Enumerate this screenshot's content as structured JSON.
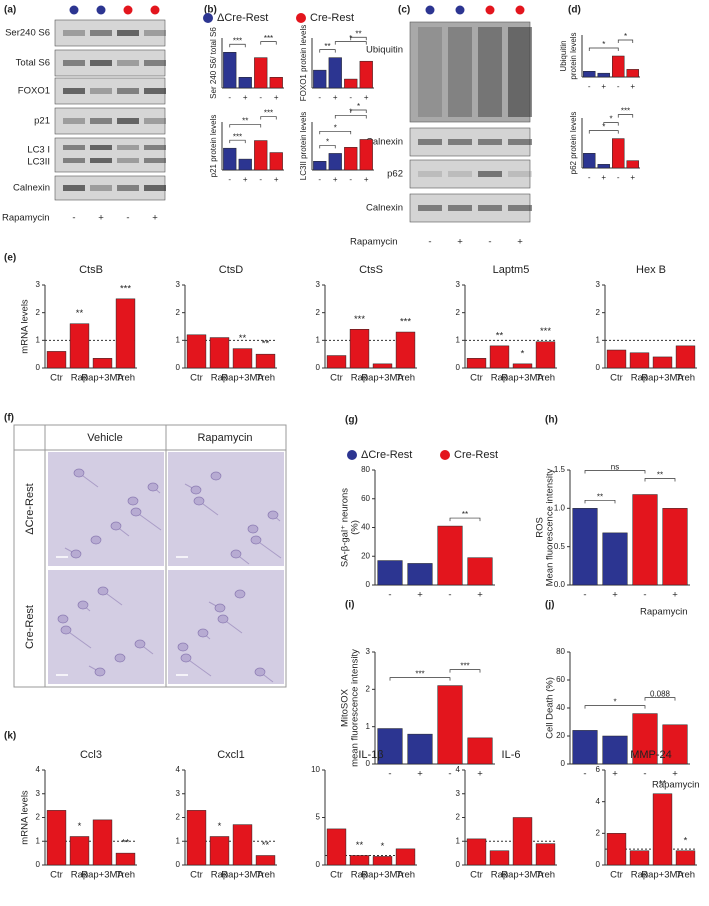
{
  "panel_labels": [
    "(a)",
    "(b)",
    "(c)",
    "(d)",
    "(e)",
    "(f)",
    "(g)",
    "(h)",
    "(i)",
    "(j)",
    "(k)"
  ],
  "legend": [
    {
      "name": "ΔCre-Rest",
      "color": "#2c3591"
    },
    {
      "name": "Cre-Rest",
      "color": "#e3151d"
    }
  ],
  "treatment_label": "Rapamycin",
  "conditions": [
    "-",
    "+",
    "-",
    "+"
  ],
  "blots_a": {
    "rows": [
      "Ser240 S6",
      "Total S6",
      "FOXO1",
      "p21",
      "LC3 I",
      "LC3II",
      "Calnexin"
    ]
  },
  "blots_c": {
    "rows": [
      "Ubiquitin",
      "Calnexin",
      "p62",
      "Calnexin"
    ]
  },
  "micrographs": {
    "columns": [
      "Vehicle",
      "Rapamycin"
    ],
    "rows": [
      "ΔCre-Rest",
      "Cre-Rest"
    ]
  },
  "chart_data": [
    {
      "type": "bar",
      "ylabel": [
        "Ser 240 S6/ total S6"
      ],
      "categories": [
        "-",
        "+",
        "-",
        "+"
      ],
      "values": [
        1.0,
        0.3,
        0.85,
        0.3
      ],
      "colors": [
        "#2c3591",
        "#2c3591",
        "#e3151d",
        "#e3151d"
      ],
      "ylim": [
        0,
        1.4
      ],
      "significance": [
        "***",
        "***"
      ]
    },
    {
      "type": "bar",
      "ylabel": [
        "FOXO1 protein levels"
      ],
      "categories": [
        "-",
        "+",
        "-",
        "+"
      ],
      "values": [
        1.0,
        1.7,
        0.5,
        1.5
      ],
      "colors": [
        "#2c3591",
        "#2c3591",
        "#e3151d",
        "#e3151d"
      ],
      "ylim": [
        0,
        2.8
      ],
      "significance": [
        "**",
        "*",
        "**"
      ]
    },
    {
      "type": "bar",
      "ylabel": [
        "p21 protein levels"
      ],
      "categories": [
        "-",
        "+",
        "-",
        "+"
      ],
      "values": [
        1.0,
        0.5,
        1.35,
        0.8
      ],
      "colors": [
        "#2c3591",
        "#2c3591",
        "#e3151d",
        "#e3151d"
      ],
      "ylim": [
        0,
        2.2
      ],
      "significance": [
        "***",
        "**",
        "***"
      ]
    },
    {
      "type": "bar",
      "ylabel": [
        "LC3II protein levels"
      ],
      "categories": [
        "-",
        "+",
        "-",
        "+"
      ],
      "values": [
        1.0,
        1.9,
        2.6,
        3.5
      ],
      "colors": [
        "#2c3591",
        "#2c3591",
        "#e3151d",
        "#e3151d"
      ],
      "ylim": [
        0,
        5.5
      ],
      "significance": [
        "*",
        "*",
        "*",
        "*"
      ]
    },
    {
      "type": "bar",
      "ylabel": [
        "Ubiquitin",
        "protein levels"
      ],
      "categories": [
        "-",
        "+",
        "-",
        "+"
      ],
      "values": [
        0.15,
        0.1,
        0.55,
        0.2
      ],
      "colors": [
        "#2c3591",
        "#2c3591",
        "#e3151d",
        "#e3151d"
      ],
      "ylim": [
        0,
        1.1
      ],
      "significance": [
        "*",
        "*"
      ]
    },
    {
      "type": "bar",
      "ylabel": [
        "p62 protein levels"
      ],
      "categories": [
        "-",
        "+",
        "-",
        "+"
      ],
      "values": [
        1.0,
        0.25,
        2.0,
        0.5
      ],
      "colors": [
        "#2c3591",
        "#2c3591",
        "#e3151d",
        "#e3151d"
      ],
      "ylim": [
        0,
        3.4
      ],
      "significance": [
        "*",
        "*",
        "***"
      ]
    },
    {
      "type": "bar",
      "title": "CtsB",
      "ylabel": [
        "mRNA levels"
      ],
      "categories": [
        "Ctr",
        "Rap",
        "Rap+3MA",
        "Treh"
      ],
      "values": [
        0.6,
        1.6,
        0.35,
        2.5
      ],
      "color": "#e3151d",
      "ylim": [
        0,
        3
      ],
      "yticks": [
        0,
        1,
        2,
        3
      ],
      "reference_line": 1,
      "significance": [
        null,
        "**",
        null,
        "***"
      ]
    },
    {
      "type": "bar",
      "title": "CtsD",
      "categories": [
        "Ctr",
        "Rap",
        "Rap+3MA",
        "Treh"
      ],
      "values": [
        1.2,
        1.1,
        0.7,
        0.5
      ],
      "color": "#e3151d",
      "ylim": [
        0,
        3
      ],
      "yticks": [
        0,
        1,
        2,
        3
      ],
      "reference_line": 1,
      "significance": [
        null,
        null,
        "**",
        "**"
      ]
    },
    {
      "type": "bar",
      "title": "CtsS",
      "categories": [
        "Ctr",
        "Rap",
        "Rap+3MA",
        "Treh"
      ],
      "values": [
        0.45,
        1.4,
        0.15,
        1.3
      ],
      "color": "#e3151d",
      "ylim": [
        0,
        3
      ],
      "yticks": [
        0,
        1,
        2,
        3
      ],
      "reference_line": 1,
      "significance": [
        null,
        "***",
        null,
        "***"
      ]
    },
    {
      "type": "bar",
      "title": "Laptm5",
      "categories": [
        "Ctr",
        "Rap",
        "Rap+3MA",
        "Treh"
      ],
      "values": [
        0.35,
        0.8,
        0.15,
        0.95
      ],
      "color": "#e3151d",
      "ylim": [
        0,
        3
      ],
      "yticks": [
        0,
        1,
        2,
        3
      ],
      "reference_line": 1,
      "significance": [
        null,
        "**",
        "*",
        "***"
      ]
    },
    {
      "type": "bar",
      "title": "Hex B",
      "categories": [
        "Ctr",
        "Rap",
        "Rap+3MA",
        "Treh"
      ],
      "values": [
        0.65,
        0.55,
        0.4,
        0.8
      ],
      "color": "#e3151d",
      "ylim": [
        0,
        3
      ],
      "yticks": [
        0,
        1,
        2,
        3
      ],
      "reference_line": 1
    },
    {
      "type": "bar",
      "ylabel": [
        "SA-β-gal⁺ neurons",
        "(%)"
      ],
      "categories": [
        "-",
        "+",
        "-",
        "+"
      ],
      "values": [
        17,
        15,
        41,
        19
      ],
      "colors": [
        "#2c3591",
        "#2c3591",
        "#e3151d",
        "#e3151d"
      ],
      "ylim": [
        0,
        80
      ],
      "yticks": [
        0,
        20,
        40,
        60,
        80
      ],
      "significance": [
        "**"
      ]
    },
    {
      "type": "bar",
      "ylabel": [
        "ROS",
        "Mean fluorescence intensity"
      ],
      "categories": [
        "-",
        "+",
        "-",
        "+"
      ],
      "values": [
        1.0,
        0.68,
        1.18,
        1.0
      ],
      "colors": [
        "#2c3591",
        "#2c3591",
        "#e3151d",
        "#e3151d"
      ],
      "ylim": [
        0,
        1.5
      ],
      "yticks": [
        {
          "value": 0,
          "label": "0.0"
        },
        0.5,
        {
          "value": 1,
          "label": "1.0"
        },
        1.5
      ],
      "significance": [
        "**",
        "**",
        "ns"
      ]
    },
    {
      "type": "bar",
      "ylabel": [
        "MitoSOX",
        "mean fluorescence intensity"
      ],
      "categories": [
        "-",
        "+",
        "-",
        "+"
      ],
      "values": [
        0.95,
        0.8,
        2.1,
        0.7
      ],
      "colors": [
        "#2c3591",
        "#2c3591",
        "#e3151d",
        "#e3151d"
      ],
      "ylim": [
        0,
        3
      ],
      "yticks": [
        0,
        1,
        2,
        3
      ],
      "significance": [
        "***",
        "***"
      ]
    },
    {
      "type": "bar",
      "ylabel": [
        "Cell Death (%)"
      ],
      "categories": [
        "-",
        "+",
        "-",
        "+"
      ],
      "values": [
        24,
        20,
        36,
        28
      ],
      "colors": [
        "#2c3591",
        "#2c3591",
        "#e3151d",
        "#e3151d"
      ],
      "ylim": [
        0,
        80
      ],
      "yticks": [
        0,
        20,
        40,
        60,
        80
      ],
      "significance": [
        "*",
        "0.088"
      ]
    },
    {
      "type": "bar",
      "title": "Ccl3",
      "ylabel": [
        "mRNA levels"
      ],
      "categories": [
        "Ctr",
        "Rap",
        "Rap+3MA",
        "Treh"
      ],
      "values": [
        2.3,
        1.2,
        1.9,
        0.5
      ],
      "color": "#e3151d",
      "ylim": [
        0,
        4
      ],
      "yticks": [
        0,
        1,
        2,
        3,
        4
      ],
      "reference_line": 1,
      "significance": [
        null,
        "*",
        null,
        "**"
      ]
    },
    {
      "type": "bar",
      "title": "Cxcl1",
      "categories": [
        "Ctr",
        "Rap",
        "Rap+3MA",
        "Treh"
      ],
      "values": [
        2.3,
        1.2,
        1.7,
        0.4
      ],
      "color": "#e3151d",
      "ylim": [
        0,
        4
      ],
      "yticks": [
        0,
        1,
        2,
        3,
        4
      ],
      "reference_line": 1,
      "significance": [
        null,
        "*",
        null,
        "**"
      ]
    },
    {
      "type": "bar",
      "title": "IL-1β",
      "categories": [
        "Ctr",
        "Rap",
        "Rap+3MA",
        "Treh"
      ],
      "values": [
        3.8,
        1.0,
        0.9,
        1.7
      ],
      "color": "#e3151d",
      "ylim": [
        0,
        10
      ],
      "yticks": [
        0,
        5,
        10
      ],
      "reference_line": 1,
      "significance": [
        null,
        "**",
        "*",
        null
      ]
    },
    {
      "type": "bar",
      "title": "IL-6",
      "categories": [
        "Ctr",
        "Rap",
        "Rap+3MA",
        "Treh"
      ],
      "values": [
        1.1,
        0.6,
        2.0,
        0.9
      ],
      "color": "#e3151d",
      "ylim": [
        0,
        4
      ],
      "yticks": [
        0,
        1,
        2,
        3,
        4
      ],
      "reference_line": 1
    },
    {
      "type": "bar",
      "title": "MMP-24",
      "categories": [
        "Ctr",
        "Rap",
        "Rap+3MA",
        "Treh"
      ],
      "values": [
        2.0,
        0.9,
        4.5,
        0.9
      ],
      "color": "#e3151d",
      "ylim": [
        0,
        6
      ],
      "yticks": [
        0,
        2,
        4,
        6
      ],
      "reference_line": 1,
      "significance": [
        null,
        null,
        "**",
        "*"
      ]
    }
  ]
}
